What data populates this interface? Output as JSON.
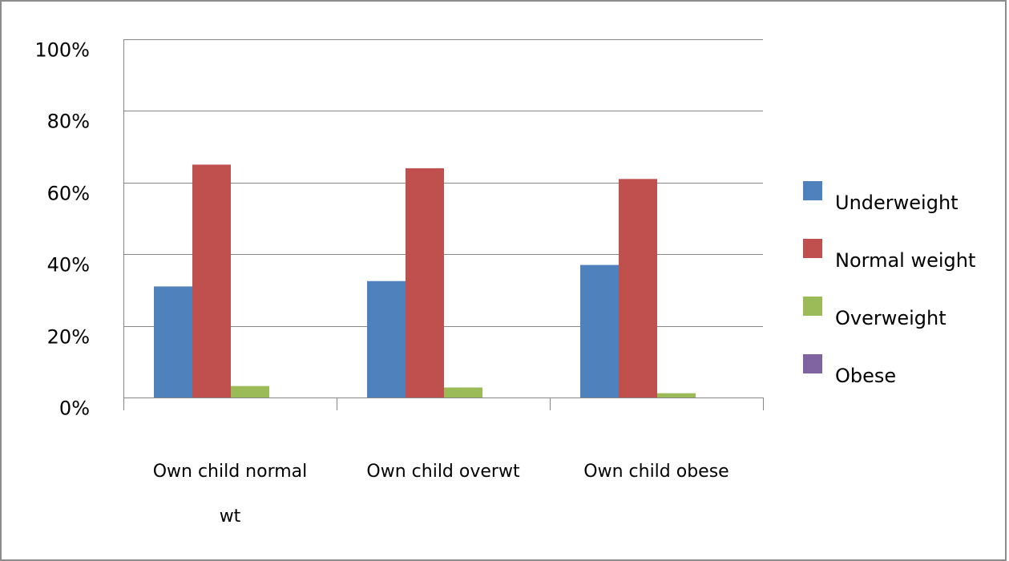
{
  "chart_data": {
    "type": "bar",
    "categories": [
      [
        "Own child normal",
        "wt"
      ],
      [
        "Own child overwt"
      ],
      [
        "Own child obese"
      ]
    ],
    "series": [
      {
        "name": "Underweight",
        "color": "#4f81bd",
        "values": [
          31,
          32.5,
          37
        ]
      },
      {
        "name": "Normal weight",
        "color": "#c0504d",
        "values": [
          65,
          64,
          61
        ]
      },
      {
        "name": "Overweight",
        "color": "#9bbb59",
        "values": [
          3.2,
          2.8,
          1.2
        ]
      },
      {
        "name": "Obese",
        "color": "#8064a2",
        "values": [
          0,
          0,
          0
        ]
      }
    ],
    "y_ticks": [
      "0%",
      "20%",
      "40%",
      "60%",
      "80%",
      "100%"
    ],
    "ylim": [
      0,
      100
    ],
    "grid": true,
    "legend_position": "right"
  }
}
